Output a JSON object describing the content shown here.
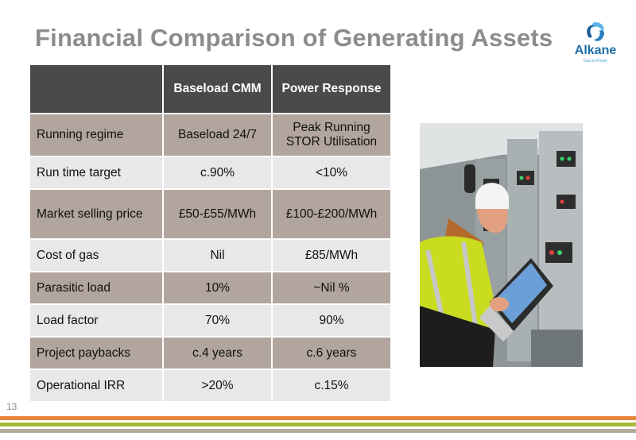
{
  "title": "Financial Comparison of Generating Assets",
  "logo": {
    "name": "Alkane",
    "tagline": "Gas to Power"
  },
  "table": {
    "headers": [
      "",
      "Baseload CMM",
      "Power Response"
    ],
    "rows": [
      {
        "label": "Running regime",
        "baseload": "Baseload 24/7",
        "power": [
          "Peak Running",
          "STOR Utilisation"
        ]
      },
      {
        "label": "Run time target",
        "baseload": "c.90%",
        "power": [
          "<10%"
        ]
      },
      {
        "label": "Market selling price",
        "baseload": "£50-£55/MWh",
        "power": [
          "£100-£200/MWh"
        ]
      },
      {
        "label": "Cost of gas",
        "baseload": "Nil",
        "power": [
          "£85/MWh"
        ]
      },
      {
        "label": "Parasitic load",
        "baseload": "10%",
        "power": [
          "~Nil %"
        ]
      },
      {
        "label": "Load factor",
        "baseload": "70%",
        "power": [
          "90%"
        ]
      },
      {
        "label": "Project paybacks",
        "baseload": "c.4 years",
        "power": [
          "c.6 years"
        ]
      },
      {
        "label": "Operational IRR",
        "baseload": ">20%",
        "power": [
          "c.15%"
        ]
      }
    ]
  },
  "page_number": "13",
  "colors": {
    "header_bg": "#4a4a4a",
    "row_dark": "#b1a59d",
    "row_light": "#e8e8e8",
    "stripe_orange": "#e8883a",
    "stripe_green": "#a8b83a",
    "stripe_taupe": "#b5a99a",
    "brand_blue": "#1f6fa8"
  }
}
